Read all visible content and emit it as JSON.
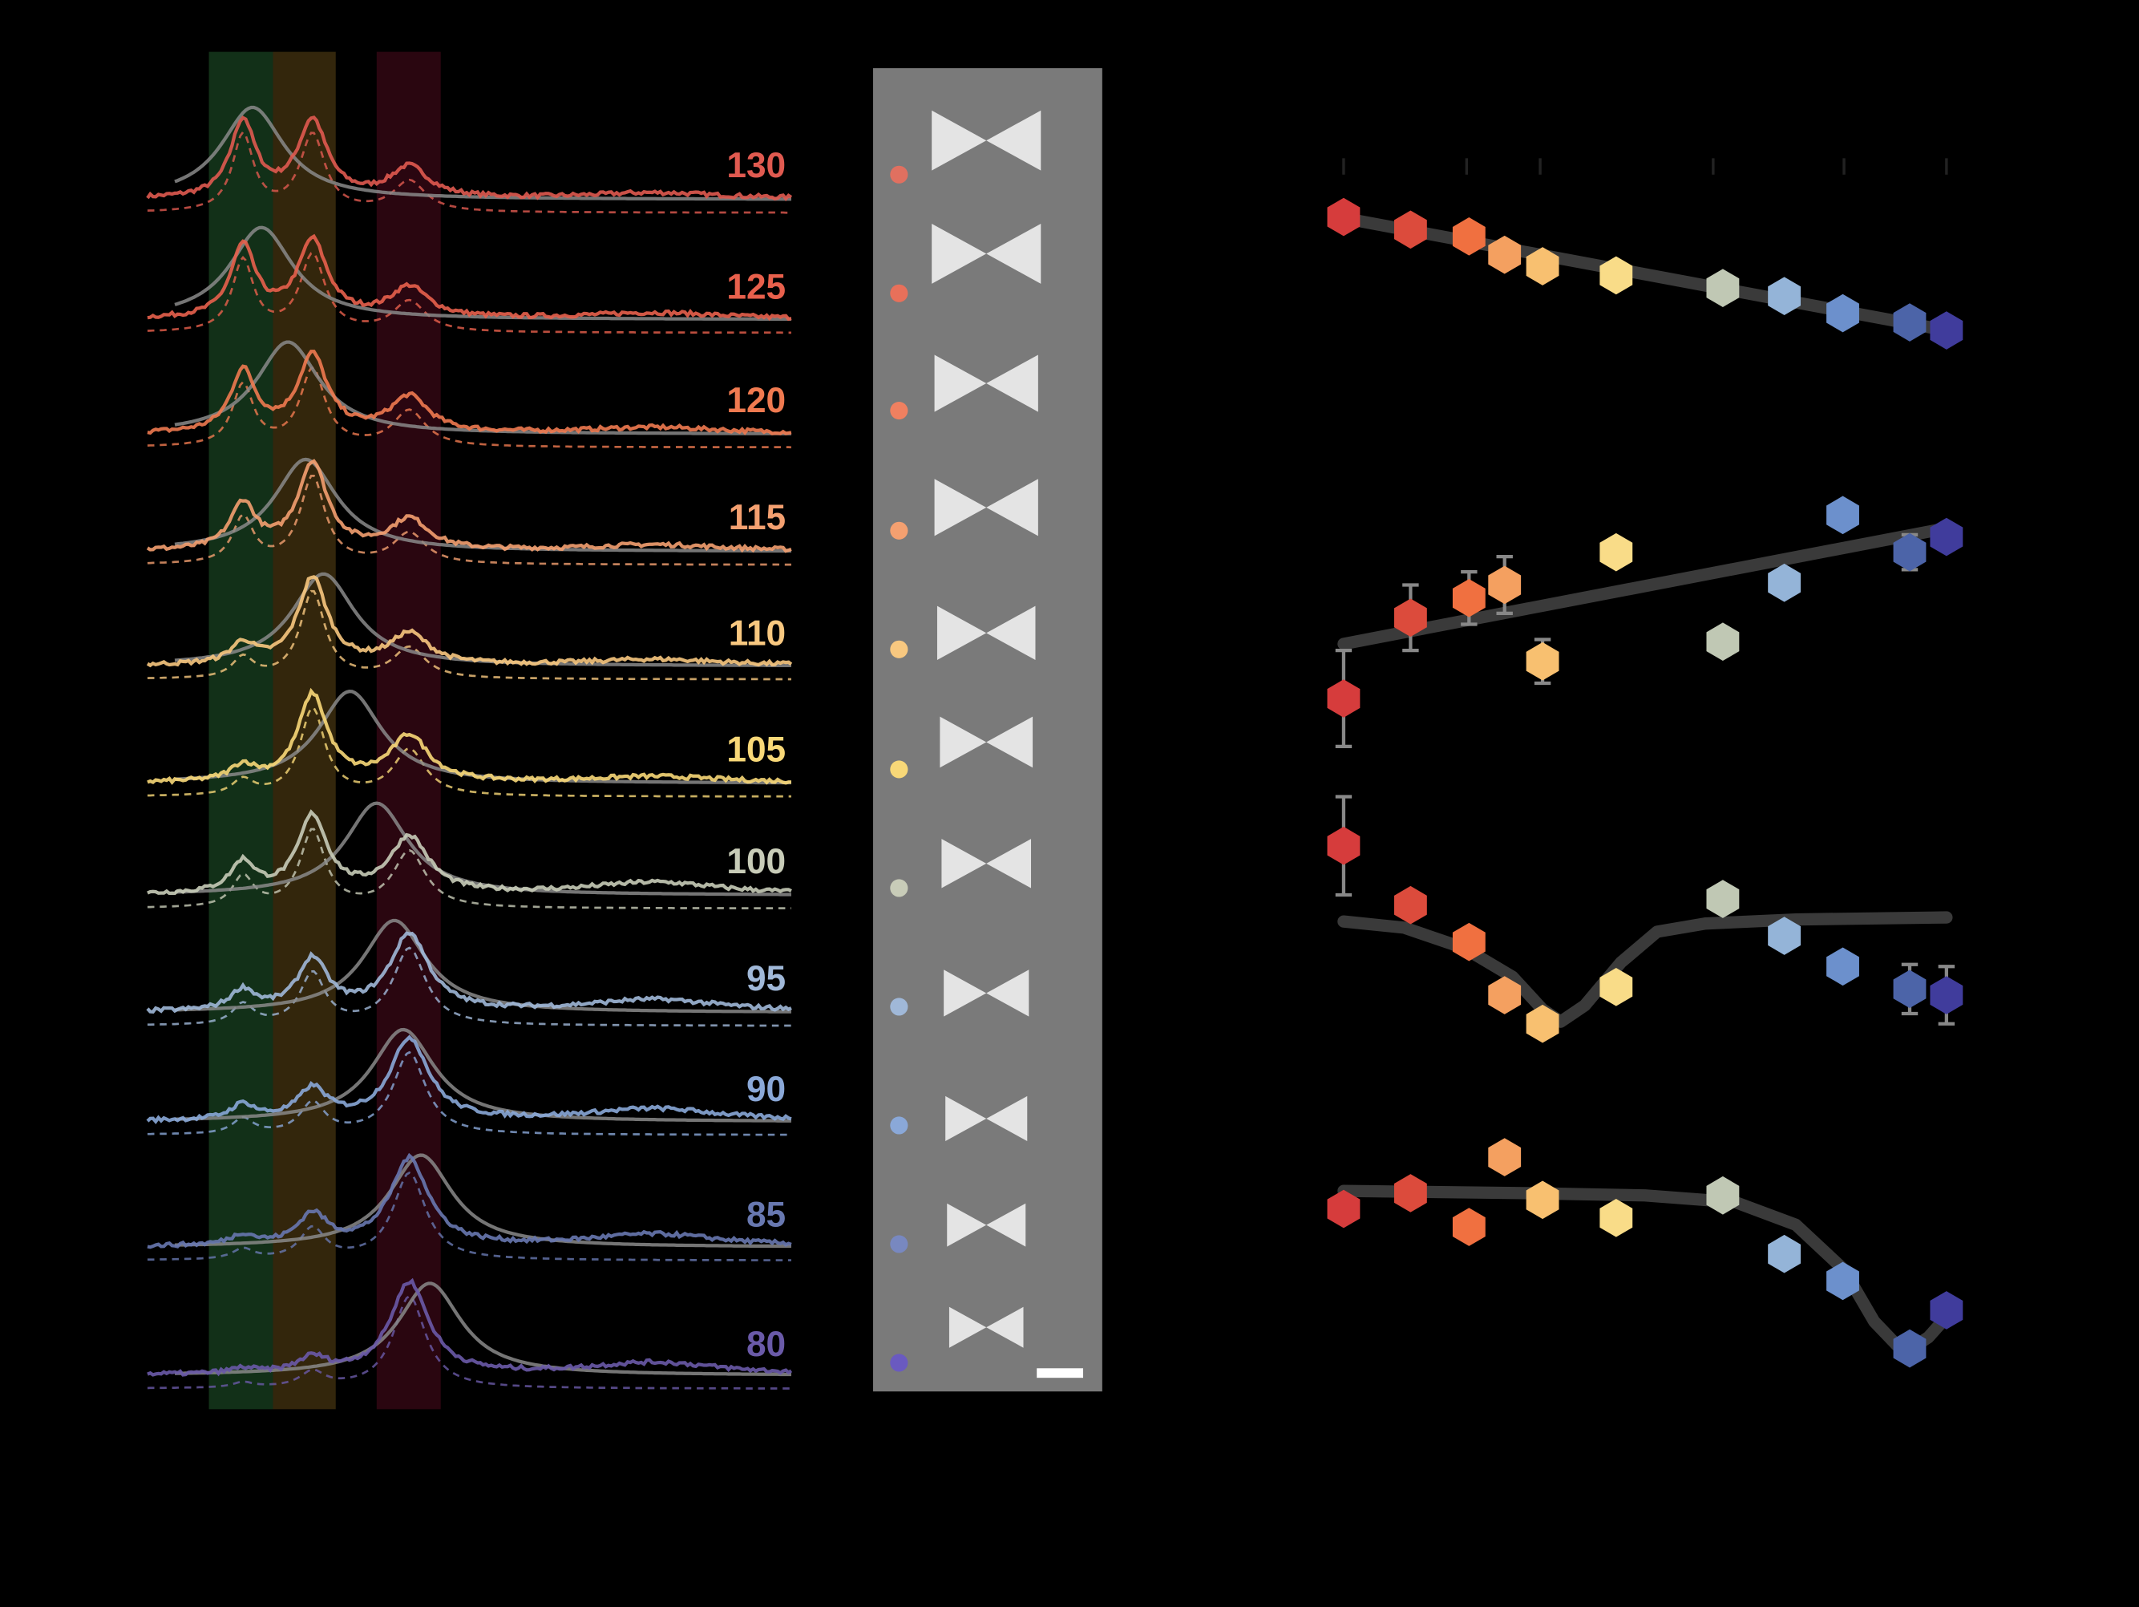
{
  "chart_data": [
    {
      "type": "line",
      "panel": "spectra",
      "band_colors": [
        "#123018",
        "#33260c",
        "#2a0610"
      ],
      "rows": [
        {
          "label": "130",
          "color": "#e05a50",
          "peaks": [
            0.75,
            0.75,
            0.3
          ],
          "ref_peak_shift": 0.0
        },
        {
          "label": "125",
          "color": "#e8604c",
          "peaks": [
            0.7,
            0.75,
            0.3
          ],
          "ref_peak_shift": 0.05
        },
        {
          "label": "120",
          "color": "#f07a50",
          "peaks": [
            0.6,
            0.75,
            0.35
          ],
          "ref_peak_shift": 0.2
        },
        {
          "label": "115",
          "color": "#f4a070",
          "peaks": [
            0.45,
            0.85,
            0.3
          ],
          "ref_peak_shift": 0.3
        },
        {
          "label": "110",
          "color": "#f8c880",
          "peaks": [
            0.2,
            0.85,
            0.3
          ],
          "ref_peak_shift": 0.4
        },
        {
          "label": "105",
          "color": "#f8d878",
          "peaks": [
            0.15,
            0.85,
            0.45
          ],
          "ref_peak_shift": 0.55
        },
        {
          "label": "100",
          "color": "#c8ccb8",
          "peaks": [
            0.3,
            0.75,
            0.55
          ],
          "ref_peak_shift": 0.7
        },
        {
          "label": "95",
          "color": "#a0b8d8",
          "peaks": [
            0.2,
            0.5,
            0.75
          ],
          "ref_peak_shift": 0.8
        },
        {
          "label": "90",
          "color": "#8aa8d8",
          "peaks": [
            0.15,
            0.3,
            0.8
          ],
          "ref_peak_shift": 0.85
        },
        {
          "label": "85",
          "color": "#6878b0",
          "peaks": [
            0.1,
            0.3,
            0.85
          ],
          "ref_peak_shift": 0.95
        },
        {
          "label": "80",
          "color": "#6a5aa8",
          "peaks": [
            0.05,
            0.15,
            0.9
          ],
          "ref_peak_shift": 1.0
        }
      ]
    },
    {
      "type": "image",
      "panel": "micrographs",
      "dot_colors": [
        "#e07060",
        "#e8705a",
        "#f08060",
        "#f4a070",
        "#f8c880",
        "#f8d878",
        "#c8ccb8",
        "#a0b8d8",
        "#8aa8d8",
        "#7888c0",
        "#6a5ac0"
      ],
      "bowtie_scale": [
        1.0,
        1.0,
        0.95,
        0.95,
        0.9,
        0.85,
        0.82,
        0.78,
        0.75,
        0.72,
        0.68
      ]
    },
    {
      "type": "scatter",
      "panel": "trends",
      "x_ticks": [
        0,
        20.4,
        32.6,
        61.3,
        83.0,
        100
      ],
      "x": [
        0,
        11.1,
        20.8,
        26.7,
        33.0,
        45.2,
        62.9,
        73.1,
        82.8,
        93.9,
        100
      ],
      "point_colors": [
        "#d63c3c",
        "#dc4b3c",
        "#f07040",
        "#f4a060",
        "#f8c070",
        "#f9dc88",
        "#c0c8b4",
        "#94b4d8",
        "#6c90cc",
        "#4c64a8",
        "#403c9c"
      ],
      "fit_color": "#3a3a3a",
      "errorbar_color": "#888888",
      "series": [
        {
          "y": [
            0.94,
            0.83,
            0.77,
            0.61,
            0.51,
            0.43,
            0.32,
            0.25,
            0.1,
            0.02,
            -0.05
          ],
          "fit": [
            [
              0,
              0.93
            ],
            [
              100,
              -0.05
            ]
          ]
        },
        {
          "y": [
            -0.25,
            0.12,
            0.21,
            0.27,
            -0.08,
            0.42,
            0.01,
            0.28,
            0.59,
            0.42,
            0.49
          ],
          "err": [
            0.22,
            0.15,
            0.12,
            0.13,
            0.1,
            0,
            0,
            0,
            0,
            0.08,
            0
          ],
          "fit": [
            [
              0,
              0.0
            ],
            [
              100,
              0.53
            ]
          ]
        },
        {
          "y": [
            0.42,
            0.13,
            -0.05,
            -0.31,
            -0.45,
            -0.27,
            0.16,
            -0.02,
            -0.17,
            -0.28,
            -0.31
          ],
          "err": [
            0.24,
            0,
            0,
            0,
            0,
            0,
            0,
            0,
            0,
            0.12,
            0.14
          ],
          "fit": [
            [
              0,
              0.05
            ],
            [
              10,
              0.02
            ],
            [
              20,
              -0.08
            ],
            [
              28,
              -0.22
            ],
            [
              33,
              -0.38
            ],
            [
              36,
              -0.44
            ],
            [
              40,
              -0.36
            ],
            [
              46,
              -0.15
            ],
            [
              52,
              0.0
            ],
            [
              60,
              0.04
            ],
            [
              75,
              0.06
            ],
            [
              100,
              0.07
            ]
          ]
        },
        {
          "y": [
            -0.08,
            -0.01,
            -0.16,
            0.15,
            -0.04,
            -0.12,
            -0.02,
            -0.28,
            -0.4,
            -0.7,
            -0.53
          ],
          "fit": [
            [
              0,
              0.0
            ],
            [
              30,
              -0.01
            ],
            [
              50,
              -0.02
            ],
            [
              65,
              -0.05
            ],
            [
              75,
              -0.15
            ],
            [
              83,
              -0.35
            ],
            [
              88,
              -0.58
            ],
            [
              93,
              -0.72
            ],
            [
              97,
              -0.65
            ],
            [
              100,
              -0.56
            ]
          ]
        }
      ]
    }
  ]
}
